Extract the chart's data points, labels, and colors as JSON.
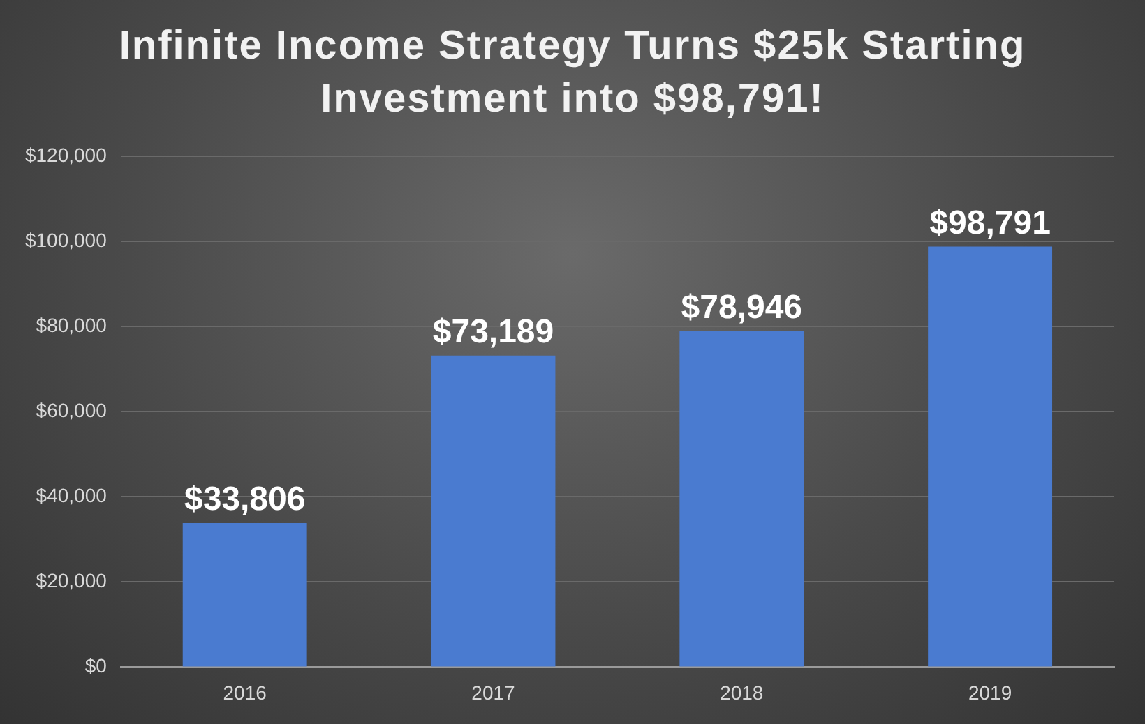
{
  "chart_data": {
    "type": "bar",
    "title": "Infinite Income Strategy Turns $25k Starting Investment into $98,791!",
    "categories": [
      "2016",
      "2017",
      "2018",
      "2019"
    ],
    "values": [
      33806,
      73189,
      78946,
      98791
    ],
    "value_labels": [
      "$33,806",
      "$73,189",
      "$78,946",
      "$98,791"
    ],
    "color": "#4a7bd0",
    "ylim": [
      0,
      120000
    ],
    "yticks": [
      {
        "value": 0,
        "label": "$0"
      },
      {
        "value": 20000,
        "label": "$20,000"
      },
      {
        "value": 40000,
        "label": "$40,000"
      },
      {
        "value": 60000,
        "label": "$60,000"
      },
      {
        "value": 80000,
        "label": "$80,000"
      },
      {
        "value": 100000,
        "label": "$100,000"
      },
      {
        "value": 120000,
        "label": "$120,000"
      }
    ],
    "grid": "y"
  }
}
